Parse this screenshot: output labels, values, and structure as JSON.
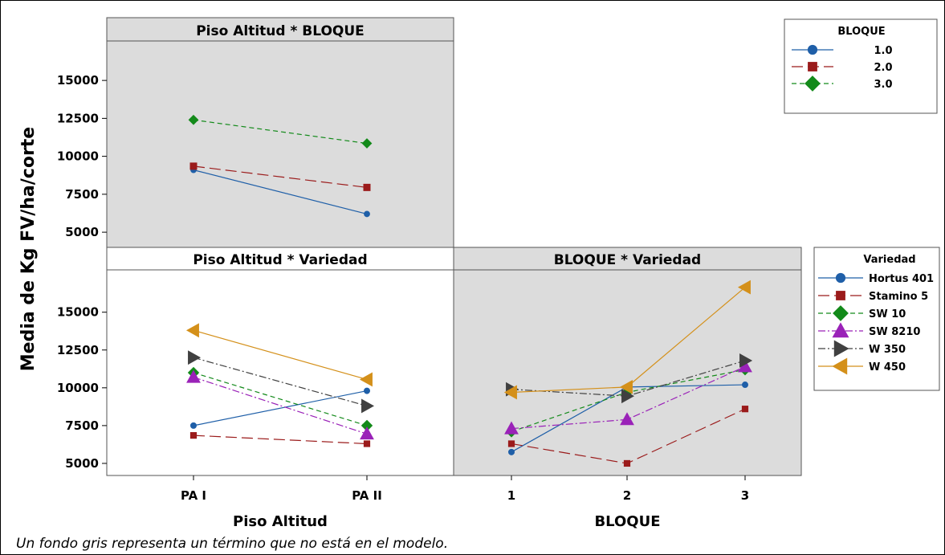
{
  "chart_data": {
    "type": "line",
    "ylabel": "Media de Kg FV/ha/corte",
    "footnote": "Un fondo gris representa un término que no está en el modelo.",
    "panels": [
      {
        "id": "piso_bloque",
        "title": "Piso Altitud * BLOQUE",
        "shaded": true,
        "categories": [
          "PA I",
          "PA II"
        ],
        "xlabel": "",
        "yticks": [
          5000,
          7500,
          10000,
          12500,
          15000
        ],
        "ylim": [
          4000,
          17600
        ],
        "legend_title": "BLOQUE",
        "series": [
          {
            "name": "1.0",
            "color": "#1f5fa8",
            "marker": "circle",
            "dash": "solid",
            "values": [
              9100,
              6200
            ]
          },
          {
            "name": "2.0",
            "color": "#9b1b1b",
            "marker": "square",
            "dash": "longdash",
            "values": [
              9350,
              7950
            ]
          },
          {
            "name": "3.0",
            "color": "#138a1a",
            "marker": "diamond",
            "dash": "dash",
            "values": [
              12400,
              10850
            ]
          }
        ]
      },
      {
        "id": "piso_variedad",
        "title": "Piso Altitud * Variedad",
        "shaded": false,
        "categories": [
          "PA I",
          "PA II"
        ],
        "xlabel": "Piso Altitud",
        "yticks": [
          5000,
          7500,
          10000,
          12500,
          15000
        ],
        "ylim": [
          4200,
          17800
        ],
        "legend_title": "Variedad",
        "series": [
          {
            "name": "Hortus 401",
            "color": "#1f5fa8",
            "marker": "circle",
            "dash": "solid",
            "values": [
              7500,
              9800
            ]
          },
          {
            "name": "Stamino 5",
            "color": "#9b1b1b",
            "marker": "square",
            "dash": "longdash",
            "values": [
              6850,
              6300
            ]
          },
          {
            "name": "SW 10",
            "color": "#138a1a",
            "marker": "diamond",
            "dash": "dash",
            "values": [
              11000,
              7500
            ]
          },
          {
            "name": "SW 8210",
            "color": "#9a22b8",
            "marker": "triangle",
            "dash": "dashdot",
            "values": [
              10700,
              6950
            ]
          },
          {
            "name": "W 350",
            "color": "#404040",
            "marker": "triangle-right",
            "dash": "dashdot",
            "values": [
              12000,
              8800
            ]
          },
          {
            "name": "W 450",
            "color": "#d4901a",
            "marker": "triangle-left",
            "dash": "solid",
            "values": [
              13800,
              10550
            ]
          }
        ]
      },
      {
        "id": "bloque_variedad",
        "title": "BLOQUE * Variedad",
        "shaded": true,
        "categories": [
          "1",
          "2",
          "3"
        ],
        "xlabel": "BLOQUE",
        "yticks": [],
        "ylim": [
          4200,
          17800
        ],
        "series": [
          {
            "name": "Hortus 401",
            "color": "#1f5fa8",
            "marker": "circle",
            "dash": "solid",
            "values": [
              5750,
              10050,
              10200
            ]
          },
          {
            "name": "Stamino 5",
            "color": "#9b1b1b",
            "marker": "square",
            "dash": "longdash",
            "values": [
              6300,
              5000,
              8600
            ]
          },
          {
            "name": "SW 10",
            "color": "#138a1a",
            "marker": "diamond",
            "dash": "dash",
            "values": [
              7100,
              9700,
              11200
            ]
          },
          {
            "name": "SW 8210",
            "color": "#9a22b8",
            "marker": "triangle",
            "dash": "dashdot",
            "values": [
              7300,
              7900,
              11400
            ]
          },
          {
            "name": "W 350",
            "color": "#404040",
            "marker": "triangle-right",
            "dash": "dashdot",
            "values": [
              9900,
              9450,
              11800
            ]
          },
          {
            "name": "W 450",
            "color": "#d4901a",
            "marker": "triangle-left",
            "dash": "solid",
            "values": [
              9700,
              10050,
              16650
            ]
          }
        ]
      }
    ]
  }
}
